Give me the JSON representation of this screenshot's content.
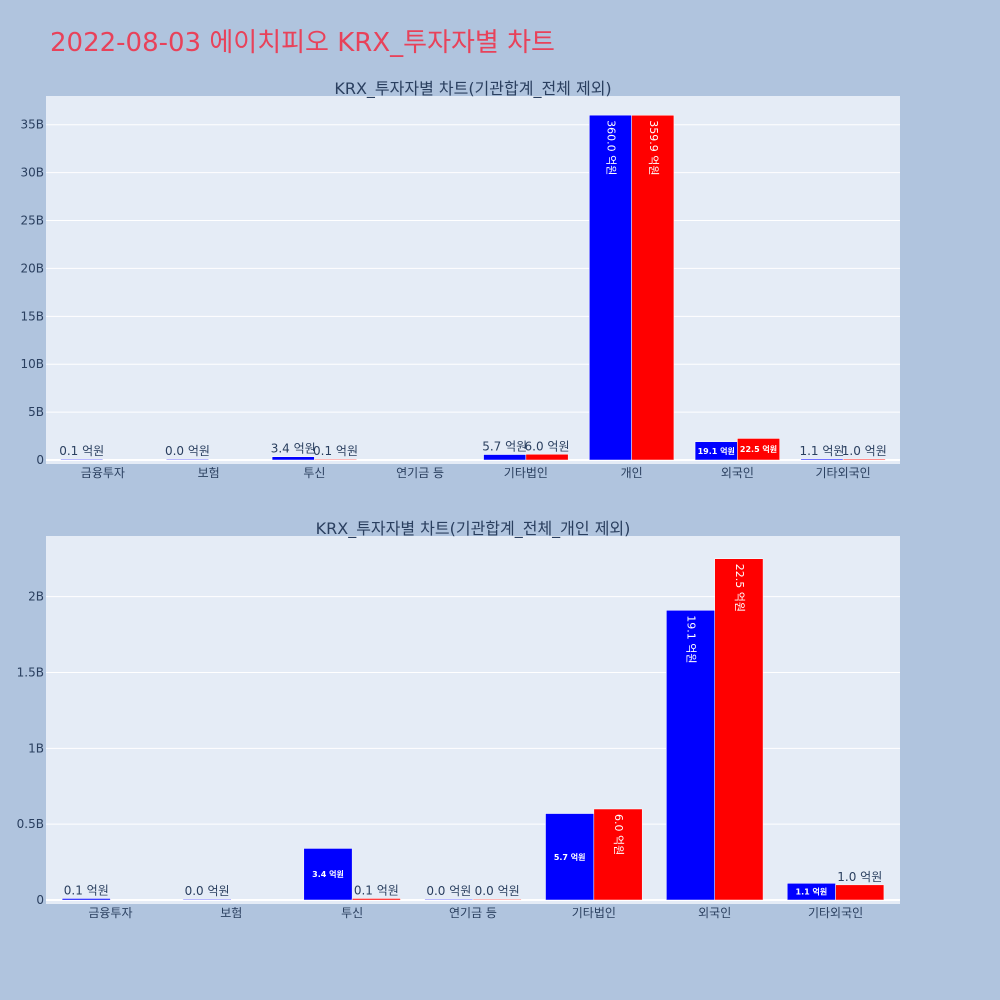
{
  "page": {
    "title": "2022-08-03 에이치피오 KRX_투자자별 차트"
  },
  "chart_data": [
    {
      "type": "bar",
      "title": "KRX_투자자별 차트(기관합계_전체 제외)",
      "categories": [
        "금융투자",
        "보험",
        "투신",
        "연기금 등",
        "기타법인",
        "개인",
        "외국인",
        "기타외국인"
      ],
      "ylim": [
        0,
        38000000000
      ],
      "yticks": [
        0,
        5000000000,
        10000000000,
        15000000000,
        20000000000,
        25000000000,
        30000000000,
        35000000000
      ],
      "ytick_labels": [
        "0",
        "5B",
        "10B",
        "15B",
        "20B",
        "25B",
        "30B",
        "35B"
      ],
      "grid": true,
      "series": [
        {
          "color": "#0000ff",
          "values": [
            10000000,
            0,
            340000000,
            null,
            570000000,
            36000000000,
            1910000000,
            110000000
          ],
          "labels": [
            "0.1 억원",
            "0.0 억원",
            "3.4 억원",
            "",
            "5.7 억원",
            "360.0 억원",
            "19.1 억원",
            "1.1 억원"
          ]
        },
        {
          "color": "#ff0000",
          "values": [
            null,
            null,
            10000000,
            null,
            600000000,
            35990000000,
            2250000000,
            100000000
          ],
          "labels": [
            "",
            "",
            "0.1 억원",
            "",
            "6.0 억원",
            "359.9 억원",
            "22.5 억원",
            "1.0 억원"
          ]
        }
      ]
    },
    {
      "type": "bar",
      "title": "KRX_투자자별 차트(기관합계_전체_개인 제외)",
      "categories": [
        "금융투자",
        "보험",
        "투신",
        "연기금 등",
        "기타법인",
        "외국인",
        "기타외국인"
      ],
      "ylim": [
        0,
        2400000000
      ],
      "yticks": [
        0,
        500000000,
        1000000000,
        1500000000,
        2000000000
      ],
      "ytick_labels": [
        "0",
        "0.5B",
        "1B",
        "1.5B",
        "2B"
      ],
      "grid": true,
      "series": [
        {
          "color": "#0000ff",
          "values": [
            10000000,
            0,
            340000000,
            0,
            570000000,
            1910000000,
            110000000
          ],
          "labels": [
            "0.1 억원",
            "0.0 억원",
            "3.4 억원",
            "0.0 억원",
            "5.7 억원",
            "19.1 억원",
            "1.1 억원"
          ]
        },
        {
          "color": "#ff0000",
          "values": [
            null,
            null,
            10000000,
            0,
            600000000,
            2250000000,
            100000000
          ],
          "labels": [
            "",
            "",
            "0.1 억원",
            "0.0 억원",
            "6.0 억원",
            "22.5 억원",
            "1.0 억원"
          ]
        }
      ]
    }
  ]
}
